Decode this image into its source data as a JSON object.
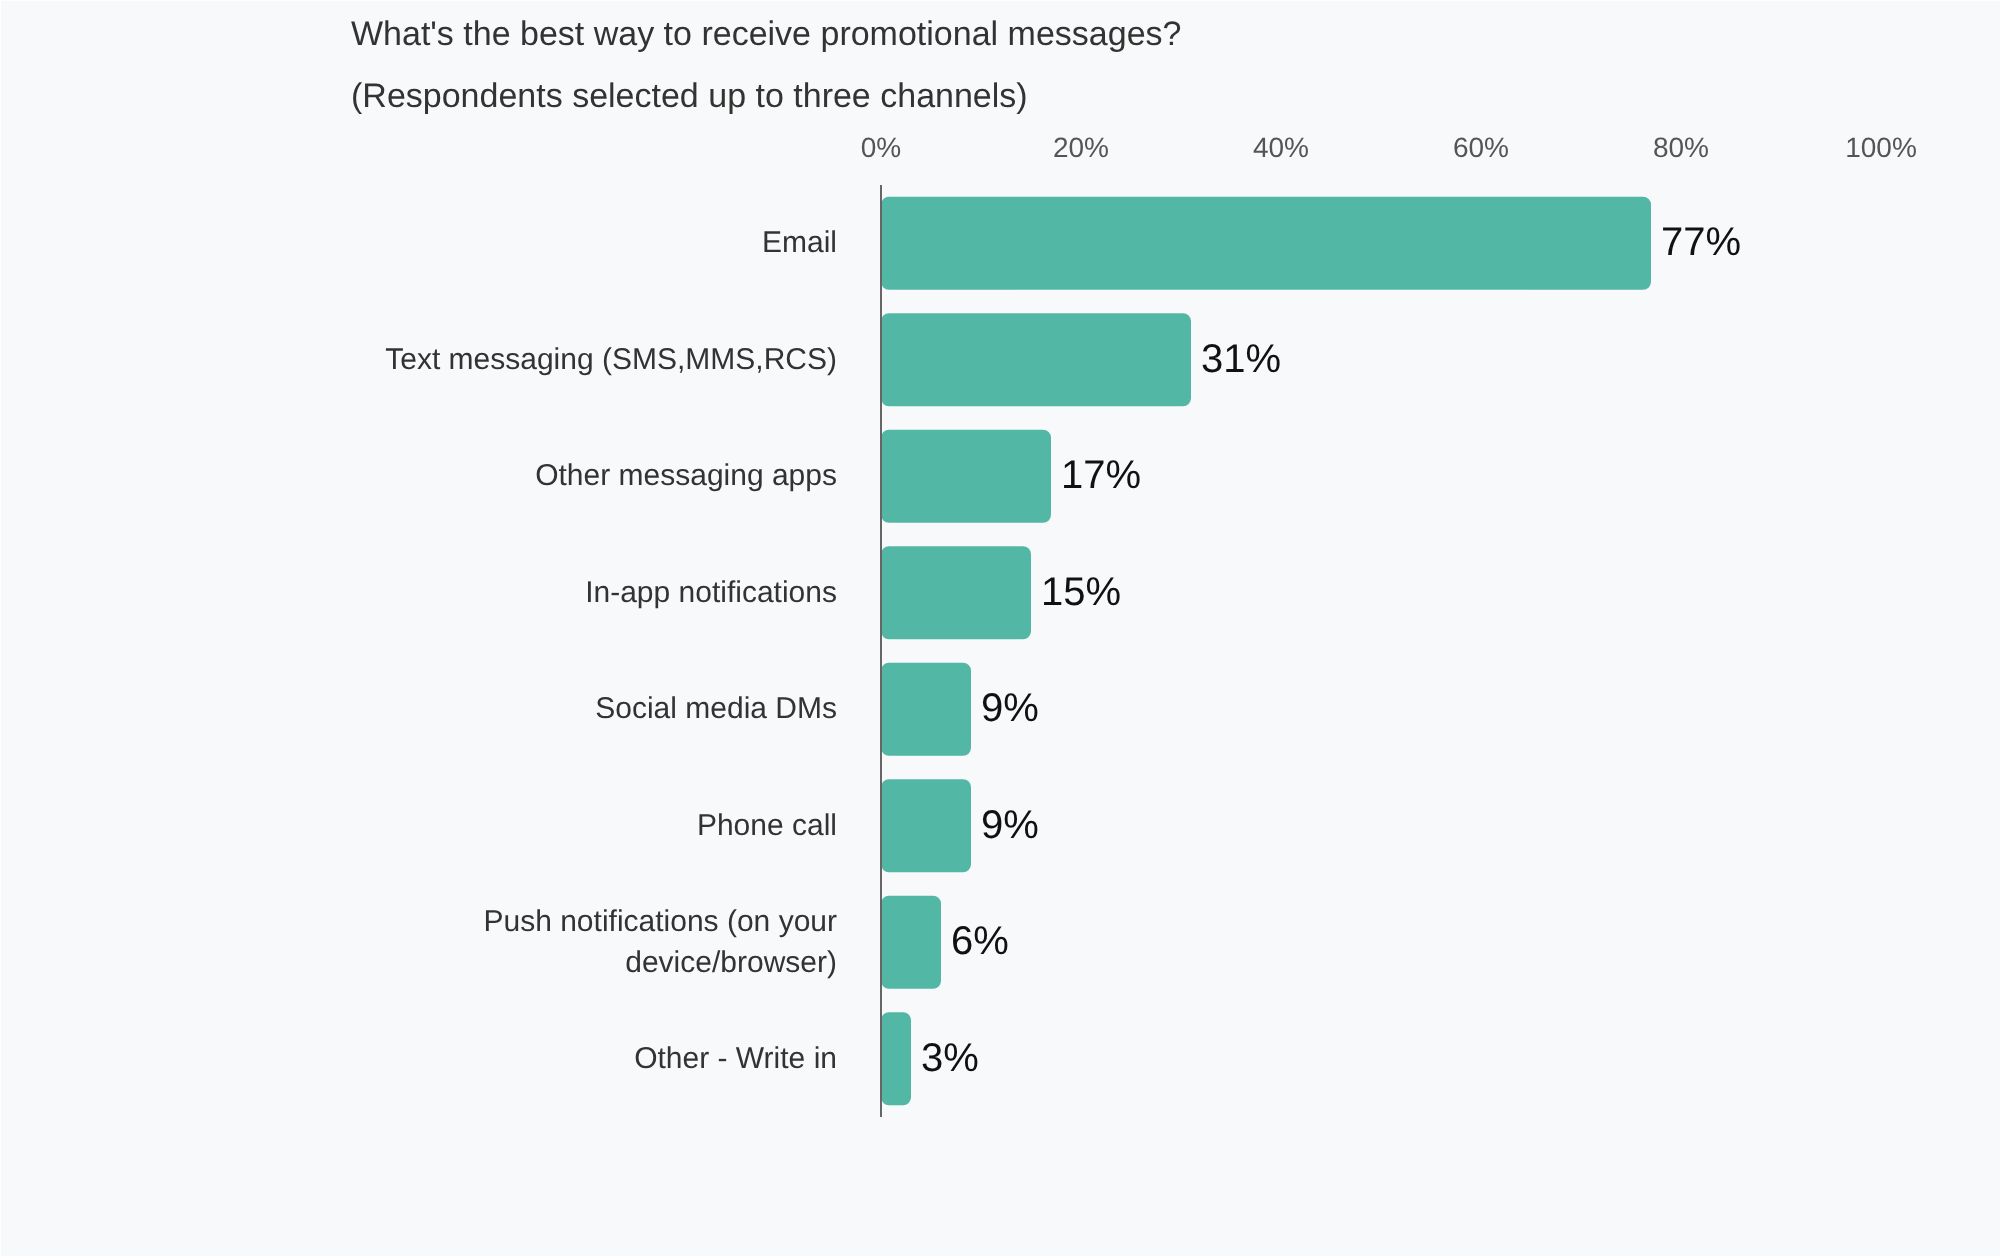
{
  "chart_data": {
    "type": "bar",
    "orientation": "horizontal",
    "title": "What's the best way to receive promotional messages?",
    "subtitle": "(Respondents selected up to three channels)",
    "categories": [
      "Email",
      "Text messaging (SMS,MMS,RCS)",
      "Other messaging apps",
      "In-app notifications",
      "Social media DMs",
      "Phone call",
      "Push notifications (on your\ndevice/browser)",
      "Other - Write in"
    ],
    "values": [
      77,
      31,
      17,
      15,
      9,
      9,
      6,
      3
    ],
    "value_labels": [
      "77%",
      "31%",
      "17%",
      "15%",
      "9%",
      "9%",
      "6%",
      "3%"
    ],
    "color": "#52b8a5",
    "xlim": [
      0,
      100
    ],
    "xticks": [
      {
        "value": 0,
        "label": "0%"
      },
      {
        "value": 20,
        "label": "20%"
      },
      {
        "value": 40,
        "label": "40%"
      },
      {
        "value": 60,
        "label": "60%"
      },
      {
        "value": 80,
        "label": "80%"
      },
      {
        "value": 100,
        "label": "100%"
      }
    ],
    "grid": false
  }
}
